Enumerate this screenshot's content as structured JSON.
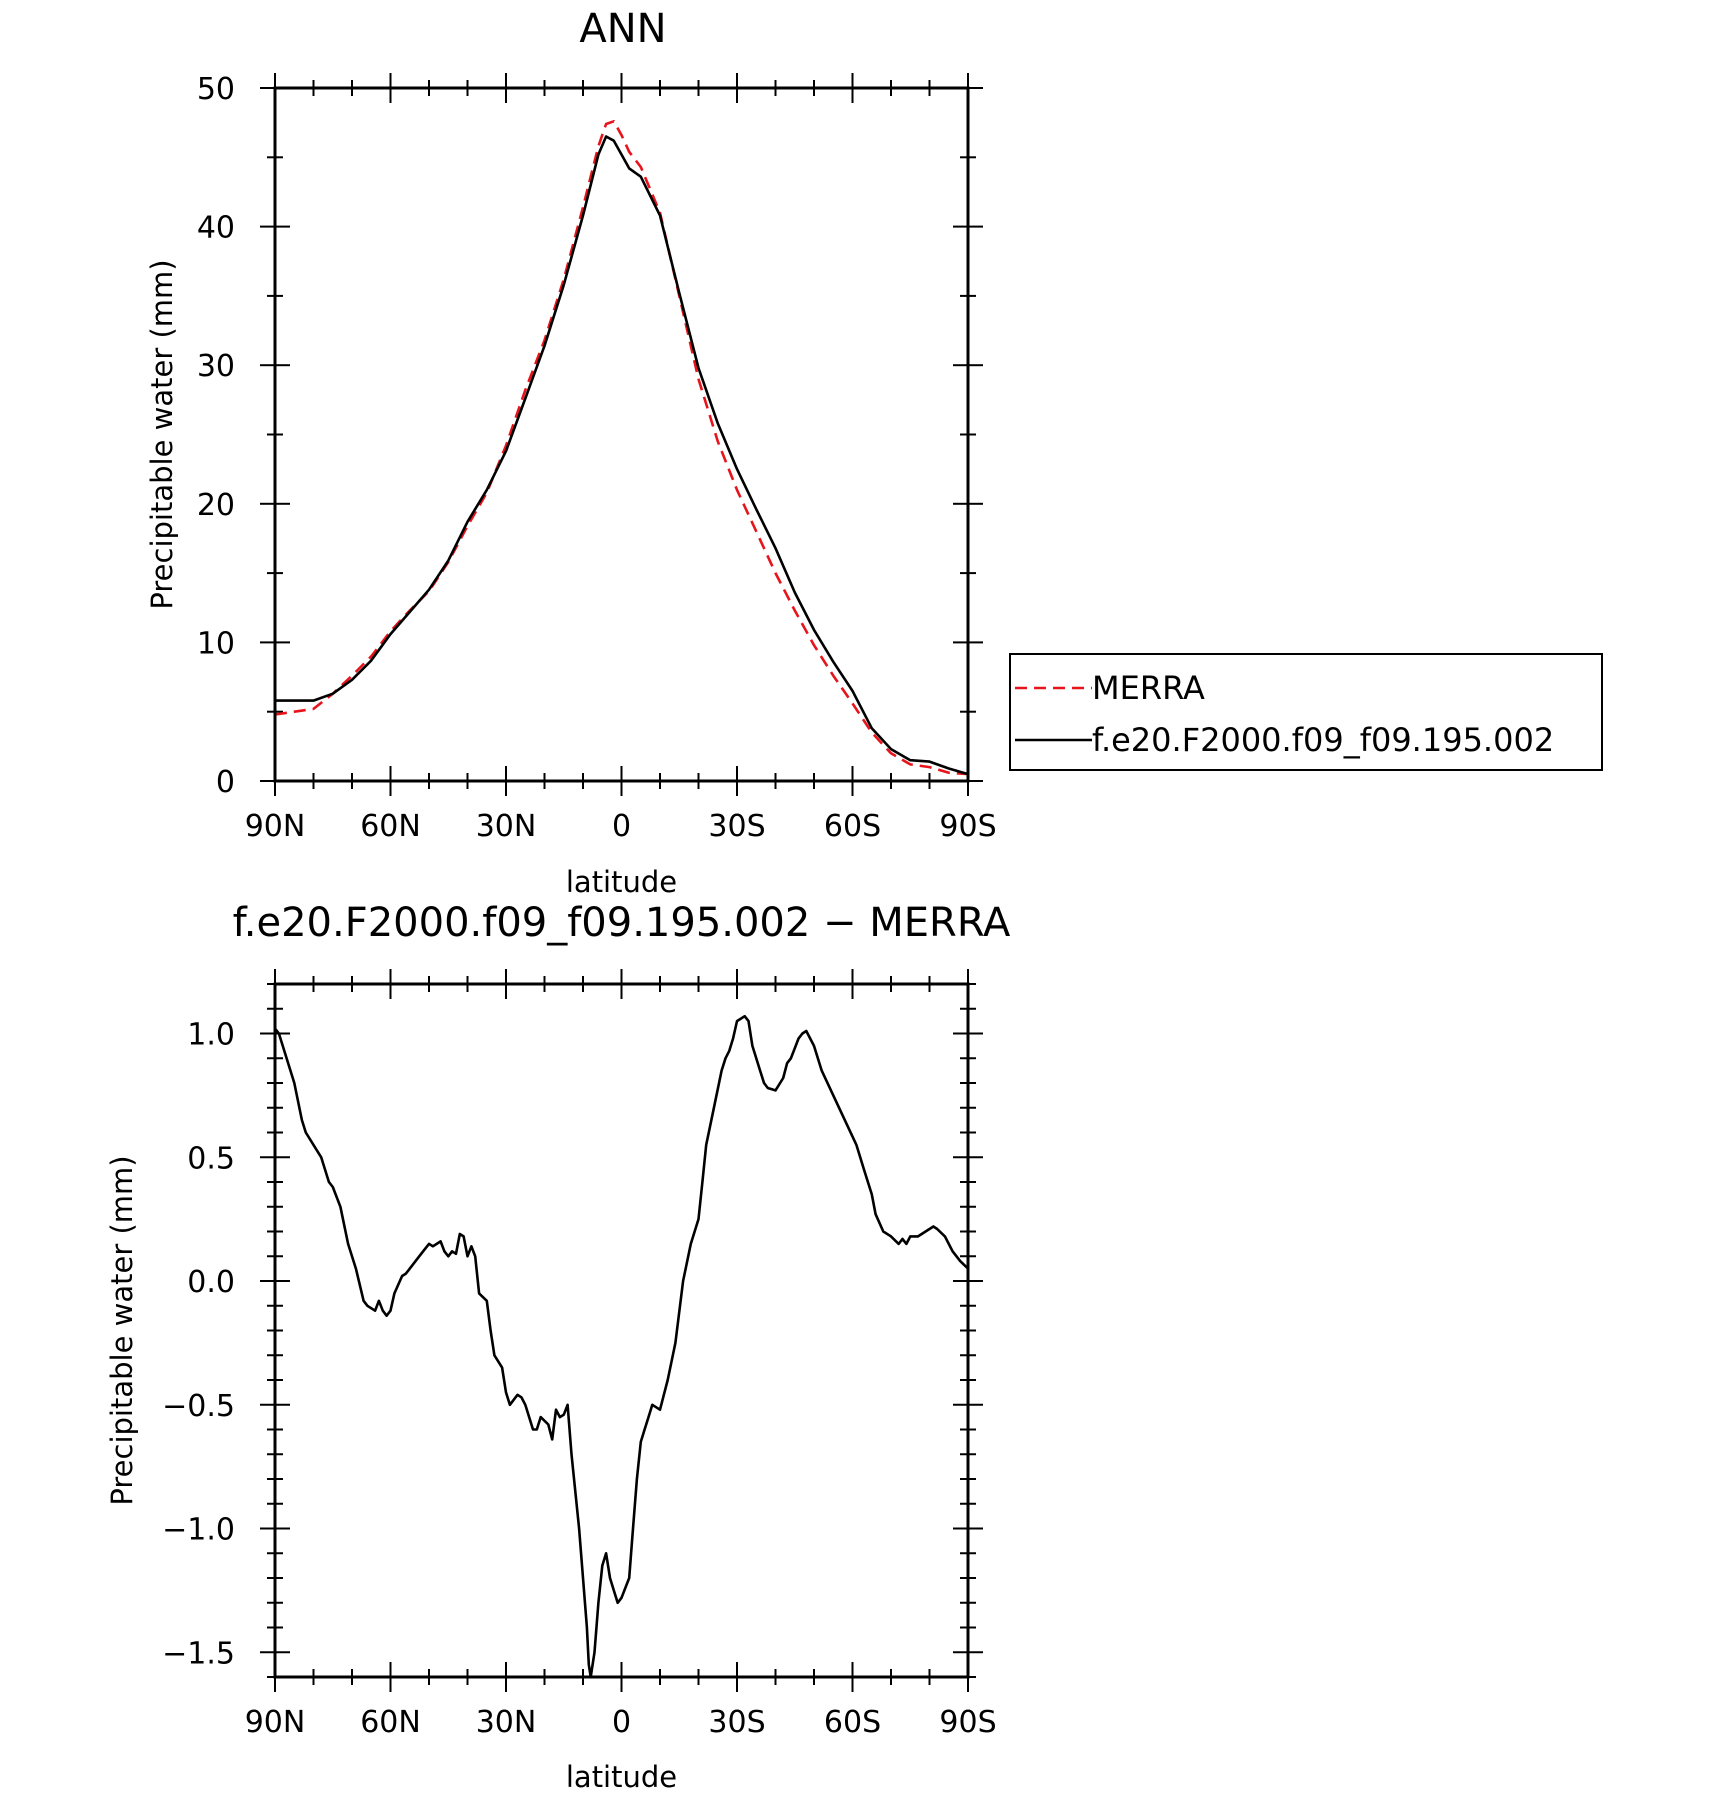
{
  "chart_data": [
    {
      "type": "line",
      "title": "ANN",
      "xlabel": "latitude",
      "ylabel": "Precipitable water (mm)",
      "xlim": [
        90,
        -90
      ],
      "ylim": [
        0,
        50
      ],
      "x_ticks": [
        90,
        60,
        30,
        0,
        -30,
        -60,
        -90
      ],
      "x_tick_labels": [
        "90N",
        "60N",
        "30N",
        "0",
        "30S",
        "60S",
        "90S"
      ],
      "y_ticks": [
        0,
        10,
        20,
        30,
        40,
        50
      ],
      "y_tick_labels": [
        "0",
        "10",
        "20",
        "30",
        "40",
        "50"
      ],
      "legend_position": "right",
      "series": [
        {
          "name": "MERRA",
          "color": "#e8141c",
          "dash": "dashed",
          "x": [
            90,
            85,
            80,
            75,
            70,
            65,
            60,
            55,
            50,
            45,
            40,
            35,
            30,
            25,
            20,
            15,
            10,
            8,
            6,
            4,
            2,
            0,
            -2,
            -5,
            -10,
            -15,
            -20,
            -25,
            -30,
            -35,
            -40,
            -45,
            -50,
            -55,
            -60,
            -65,
            -70,
            -75,
            -80,
            -85,
            -90
          ],
          "y": [
            4.8,
            5.0,
            5.2,
            6.3,
            7.6,
            9.0,
            10.8,
            12.3,
            13.7,
            15.8,
            18.4,
            20.8,
            24.2,
            28.2,
            31.8,
            36.2,
            41.4,
            43.6,
            45.8,
            47.4,
            47.6,
            46.6,
            45.4,
            44.3,
            41.0,
            35.0,
            29.0,
            24.5,
            21.0,
            18.0,
            15.0,
            12.3,
            9.8,
            7.6,
            5.6,
            3.5,
            2.0,
            1.2,
            1.0,
            0.6,
            0.5
          ]
        },
        {
          "name": "f.e20.F2000.f09_f09.195.002",
          "color": "#000000",
          "dash": "solid",
          "x": [
            90,
            85,
            80,
            75,
            70,
            65,
            60,
            55,
            50,
            45,
            40,
            35,
            30,
            25,
            20,
            15,
            10,
            8,
            6,
            4,
            2,
            0,
            -2,
            -5,
            -10,
            -15,
            -20,
            -25,
            -30,
            -35,
            -40,
            -45,
            -50,
            -55,
            -60,
            -65,
            -70,
            -75,
            -80,
            -85,
            -90
          ],
          "y": [
            5.8,
            5.8,
            5.8,
            6.3,
            7.3,
            8.7,
            10.6,
            12.2,
            13.8,
            15.9,
            18.7,
            21.0,
            23.8,
            27.6,
            31.4,
            35.8,
            40.8,
            43.0,
            45.2,
            46.5,
            46.2,
            45.2,
            44.2,
            43.6,
            40.8,
            35.2,
            29.8,
            25.8,
            22.5,
            19.6,
            16.8,
            13.6,
            10.9,
            8.6,
            6.5,
            3.8,
            2.3,
            1.5,
            1.4,
            0.9,
            0.5
          ]
        }
      ]
    },
    {
      "type": "line",
      "title": "f.e20.F2000.f09_f09.195.002 − MERRA",
      "xlabel": "latitude",
      "ylabel": "Precipitable water (mm)",
      "xlim": [
        90,
        -90
      ],
      "ylim": [
        -1.6,
        1.2
      ],
      "x_ticks": [
        90,
        60,
        30,
        0,
        -30,
        -60,
        -90
      ],
      "x_tick_labels": [
        "90N",
        "60N",
        "30N",
        "0",
        "30S",
        "60S",
        "90S"
      ],
      "y_ticks": [
        1.0,
        0.5,
        0.0,
        -0.5,
        -1.0,
        -1.5
      ],
      "y_tick_labels": [
        "1.0",
        "0.5",
        "0.0",
        "−0.5",
        "−1.0",
        "−1.5"
      ],
      "series": [
        {
          "color": "#000000",
          "dash": "solid",
          "x": [
            90,
            89,
            87,
            85,
            83,
            82,
            80,
            78,
            76,
            75,
            73,
            71,
            69,
            67,
            66,
            64,
            63,
            62,
            61,
            60,
            59,
            57,
            56,
            55,
            53,
            51,
            50,
            49,
            47,
            46,
            45,
            44,
            43,
            42,
            41,
            40,
            39,
            38,
            37,
            35,
            34,
            33,
            31,
            30,
            29,
            27,
            26,
            25,
            23,
            22,
            21,
            19,
            18,
            17,
            16,
            15,
            14,
            13,
            12,
            11,
            10,
            9,
            8.5,
            8,
            7,
            6,
            5,
            4,
            3,
            2,
            1,
            0,
            -2,
            -3,
            -4,
            -5,
            -6,
            -7,
            -8,
            -10,
            -12,
            -14,
            -16,
            -18,
            -20,
            -21,
            -22,
            -24,
            -26,
            -27,
            -28,
            -29,
            -30,
            -32,
            -33,
            -34,
            -36,
            -37,
            -38,
            -40,
            -42,
            -43,
            -44,
            -46,
            -47,
            -48,
            -50,
            -52,
            -55,
            -58,
            -61,
            -63,
            -65,
            -66,
            -68,
            -70,
            -72,
            -73,
            -74,
            -75,
            -77,
            -79,
            -81,
            -82,
            -84,
            -86,
            -88,
            -90
          ],
          "y": [
            1.02,
            1.0,
            0.9,
            0.8,
            0.65,
            0.6,
            0.55,
            0.5,
            0.4,
            0.38,
            0.3,
            0.15,
            0.05,
            -0.08,
            -0.1,
            -0.12,
            -0.08,
            -0.12,
            -0.14,
            -0.12,
            -0.05,
            0.02,
            0.03,
            0.05,
            0.09,
            0.13,
            0.15,
            0.14,
            0.16,
            0.12,
            0.1,
            0.12,
            0.11,
            0.19,
            0.18,
            0.1,
            0.14,
            0.1,
            -0.05,
            -0.08,
            -0.2,
            -0.3,
            -0.35,
            -0.45,
            -0.5,
            -0.46,
            -0.47,
            -0.5,
            -0.6,
            -0.6,
            -0.55,
            -0.58,
            -0.64,
            -0.52,
            -0.55,
            -0.54,
            -0.5,
            -0.7,
            -0.85,
            -1.0,
            -1.2,
            -1.4,
            -1.55,
            -1.6,
            -1.5,
            -1.3,
            -1.15,
            -1.1,
            -1.2,
            -1.25,
            -1.3,
            -1.28,
            -1.2,
            -1.0,
            -0.8,
            -0.65,
            -0.6,
            -0.55,
            -0.5,
            -0.52,
            -0.4,
            -0.25,
            0.0,
            0.15,
            0.25,
            0.4,
            0.55,
            0.7,
            0.85,
            0.9,
            0.93,
            0.98,
            1.05,
            1.07,
            1.05,
            0.95,
            0.85,
            0.8,
            0.78,
            0.77,
            0.82,
            0.88,
            0.9,
            0.98,
            1.0,
            1.01,
            0.95,
            0.85,
            0.75,
            0.65,
            0.55,
            0.45,
            0.35,
            0.27,
            0.2,
            0.18,
            0.15,
            0.17,
            0.15,
            0.18,
            0.18,
            0.2,
            0.22,
            0.21,
            0.18,
            0.12,
            0.08,
            0.05
          ]
        }
      ]
    }
  ]
}
